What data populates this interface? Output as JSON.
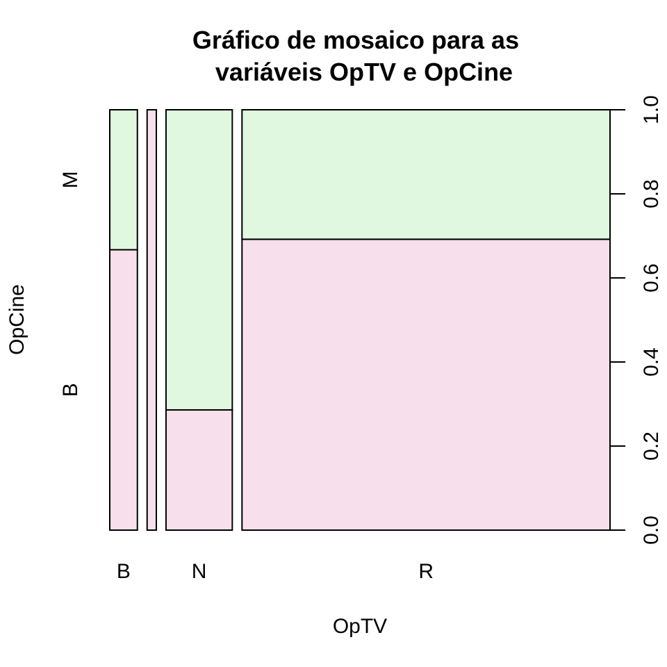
{
  "chart_data": {
    "type": "mosaic",
    "title_line1": "Gráfico de mosaico para as",
    "title_line2": "variáveis OpTV e OpCine",
    "xlabel": "OpTV",
    "ylabel": "OpCine",
    "x_categories": [
      "B",
      "",
      "N",
      "R"
    ],
    "x_proportions": [
      0.075,
      0.025,
      0.18,
      1.0
    ],
    "y_categories": [
      "B",
      "M"
    ],
    "fills": {
      "B": "#f7e0ec",
      "M": "#e0f7e0"
    },
    "b_fraction": [
      0.667,
      1.0,
      0.286,
      0.692
    ],
    "right_axis": {
      "ylim": [
        0.0,
        1.0
      ],
      "ticks": [
        "0.0",
        "0.2",
        "0.4",
        "0.6",
        "0.8",
        "1.0"
      ],
      "tick_values": [
        0.0,
        0.2,
        0.4,
        0.6,
        0.8,
        1.0
      ]
    }
  }
}
